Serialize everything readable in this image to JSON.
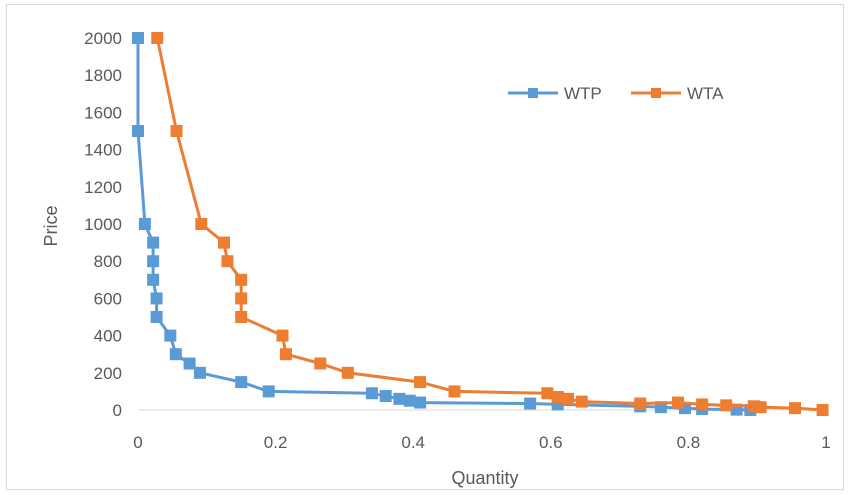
{
  "chart_data": {
    "type": "line",
    "xlabel": "Quantity",
    "ylabel": "Price",
    "xlim": [
      0,
      1
    ],
    "ylim": [
      0,
      2000
    ],
    "x_ticks": [
      "0",
      "0.2",
      "0.4",
      "0.6",
      "0.8",
      "1"
    ],
    "y_ticks": [
      "0",
      "200",
      "400",
      "600",
      "800",
      "1000",
      "1200",
      "1400",
      "1600",
      "1800",
      "2000"
    ],
    "grid": false,
    "legend_position": "top-right",
    "series": [
      {
        "name": "WTP",
        "color": "#5b9bd5",
        "marker": "square",
        "points": [
          [
            0.0,
            2000
          ],
          [
            0.0,
            1500
          ],
          [
            0.01,
            1000
          ],
          [
            0.022,
            900
          ],
          [
            0.022,
            800
          ],
          [
            0.022,
            700
          ],
          [
            0.027,
            600
          ],
          [
            0.027,
            500
          ],
          [
            0.047,
            400
          ],
          [
            0.055,
            300
          ],
          [
            0.075,
            250
          ],
          [
            0.09,
            200
          ],
          [
            0.15,
            150
          ],
          [
            0.19,
            100
          ],
          [
            0.34,
            90
          ],
          [
            0.36,
            75
          ],
          [
            0.38,
            60
          ],
          [
            0.395,
            50
          ],
          [
            0.41,
            40
          ],
          [
            0.57,
            35
          ],
          [
            0.61,
            30
          ],
          [
            0.73,
            20
          ],
          [
            0.76,
            15
          ],
          [
            0.795,
            10
          ],
          [
            0.82,
            5
          ],
          [
            0.87,
            2
          ],
          [
            0.89,
            0
          ]
        ]
      },
      {
        "name": "WTA",
        "color": "#ed7d31",
        "marker": "square",
        "points": [
          [
            0.028,
            2000
          ],
          [
            0.056,
            1500
          ],
          [
            0.092,
            1000
          ],
          [
            0.125,
            900
          ],
          [
            0.13,
            800
          ],
          [
            0.15,
            700
          ],
          [
            0.15,
            600
          ],
          [
            0.15,
            500
          ],
          [
            0.21,
            400
          ],
          [
            0.215,
            300
          ],
          [
            0.265,
            250
          ],
          [
            0.305,
            200
          ],
          [
            0.41,
            150
          ],
          [
            0.46,
            100
          ],
          [
            0.595,
            90
          ],
          [
            0.61,
            70
          ],
          [
            0.625,
            60
          ],
          [
            0.645,
            45
          ],
          [
            0.73,
            35
          ],
          [
            0.785,
            40
          ],
          [
            0.82,
            30
          ],
          [
            0.855,
            25
          ],
          [
            0.895,
            20
          ],
          [
            0.905,
            15
          ],
          [
            0.955,
            10
          ],
          [
            0.995,
            0
          ]
        ]
      }
    ]
  }
}
